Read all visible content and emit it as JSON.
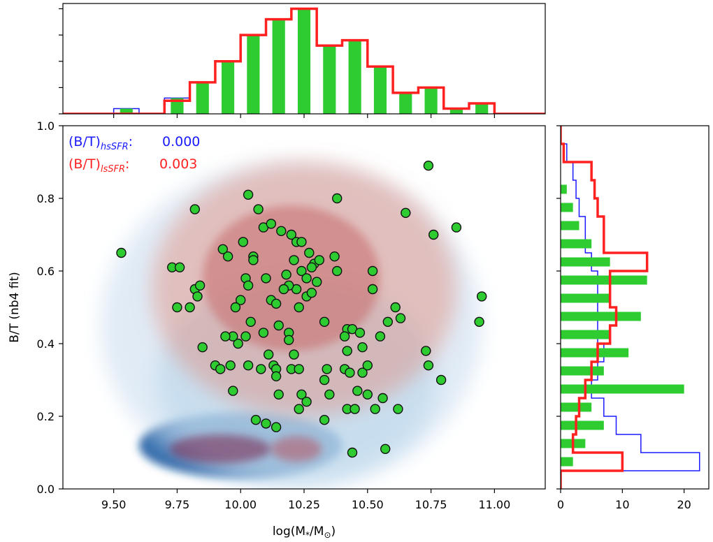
{
  "chart_data": [
    {
      "id": "main",
      "type": "scatter",
      "title": "",
      "xlabel": "log(M",
      "xlabel_sub": "*",
      "xlabel_mid": "/M",
      "xlabel_sun": "⊙",
      "xlabel_end": ")",
      "ylabel": "B/T (nb4 fit)",
      "xlim": [
        9.3,
        11.2
      ],
      "ylim": [
        0.0,
        1.0
      ],
      "xticks": [
        9.5,
        9.75,
        10.0,
        10.25,
        10.5,
        10.75,
        11.0
      ],
      "xtick_labels": [
        "9.50",
        "9.75",
        "10.00",
        "10.25",
        "10.50",
        "10.75",
        "11.00"
      ],
      "yticks": [
        0.0,
        0.2,
        0.4,
        0.6,
        0.8,
        1.0
      ],
      "ytick_labels": [
        "0.0",
        "0.2",
        "0.4",
        "0.6",
        "0.8",
        "1.0"
      ],
      "annotations": [
        {
          "prefix": "(B/T)",
          "sub": "hsSFR",
          "suffix": ":",
          "value": "0.000",
          "color": "#1a1aff"
        },
        {
          "prefix": "(B/T)",
          "sub": "lsSFR",
          "suffix": ":",
          "value": "0.003",
          "color": "#ff2020"
        }
      ],
      "density_blue": [
        {
          "cx": 10.0,
          "cy": 0.12,
          "rx": 0.4,
          "ry": 0.09,
          "level": 4
        },
        {
          "cx": 10.22,
          "cy": 0.3,
          "rx": 0.55,
          "ry": 0.28,
          "level": 2
        },
        {
          "cx": 10.2,
          "cy": 0.45,
          "rx": 0.75,
          "ry": 0.45,
          "level": 1
        }
      ],
      "density_red": [
        {
          "cx": 9.92,
          "cy": 0.11,
          "rx": 0.2,
          "ry": 0.04,
          "level": 4
        },
        {
          "cx": 10.22,
          "cy": 0.11,
          "rx": 0.1,
          "ry": 0.035,
          "level": 3
        },
        {
          "cx": 10.2,
          "cy": 0.58,
          "rx": 0.35,
          "ry": 0.2,
          "level": 3
        },
        {
          "cx": 10.25,
          "cy": 0.55,
          "rx": 0.6,
          "ry": 0.35,
          "level": 2
        }
      ],
      "points": [
        {
          "x": 9.53,
          "y": 0.65
        },
        {
          "x": 9.73,
          "y": 0.61
        },
        {
          "x": 9.76,
          "y": 0.61
        },
        {
          "x": 9.82,
          "y": 0.77
        },
        {
          "x": 9.82,
          "y": 0.55
        },
        {
          "x": 9.84,
          "y": 0.56
        },
        {
          "x": 9.83,
          "y": 0.53
        },
        {
          "x": 9.75,
          "y": 0.5
        },
        {
          "x": 9.8,
          "y": 0.5
        },
        {
          "x": 9.85,
          "y": 0.39
        },
        {
          "x": 9.93,
          "y": 0.66
        },
        {
          "x": 9.95,
          "y": 0.64
        },
        {
          "x": 10.03,
          "y": 0.81
        },
        {
          "x": 10.07,
          "y": 0.77
        },
        {
          "x": 10.09,
          "y": 0.72
        },
        {
          "x": 10.12,
          "y": 0.73
        },
        {
          "x": 10.2,
          "y": 0.7
        },
        {
          "x": 10.22,
          "y": 0.68
        },
        {
          "x": 10.24,
          "y": 0.68
        },
        {
          "x": 10.16,
          "y": 0.71
        },
        {
          "x": 10.01,
          "y": 0.68
        },
        {
          "x": 10.05,
          "y": 0.64
        },
        {
          "x": 10.05,
          "y": 0.63
        },
        {
          "x": 10.02,
          "y": 0.58
        },
        {
          "x": 10.03,
          "y": 0.56
        },
        {
          "x": 10.1,
          "y": 0.58
        },
        {
          "x": 10.18,
          "y": 0.59
        },
        {
          "x": 10.21,
          "y": 0.63
        },
        {
          "x": 10.24,
          "y": 0.6
        },
        {
          "x": 10.27,
          "y": 0.65
        },
        {
          "x": 10.29,
          "y": 0.62
        },
        {
          "x": 10.31,
          "y": 0.63
        },
        {
          "x": 10.28,
          "y": 0.61
        },
        {
          "x": 10.37,
          "y": 0.64
        },
        {
          "x": 10.38,
          "y": 0.6
        },
        {
          "x": 10.3,
          "y": 0.57
        },
        {
          "x": 10.26,
          "y": 0.58
        },
        {
          "x": 10.22,
          "y": 0.55
        },
        {
          "x": 10.19,
          "y": 0.56
        },
        {
          "x": 10.17,
          "y": 0.55
        },
        {
          "x": 10.23,
          "y": 0.5
        },
        {
          "x": 10.26,
          "y": 0.53
        },
        {
          "x": 10.28,
          "y": 0.54
        },
        {
          "x": 10.0,
          "y": 0.52
        },
        {
          "x": 10.12,
          "y": 0.52
        },
        {
          "x": 10.14,
          "y": 0.51
        },
        {
          "x": 9.98,
          "y": 0.5
        },
        {
          "x": 10.04,
          "y": 0.46
        },
        {
          "x": 10.15,
          "y": 0.45
        },
        {
          "x": 10.09,
          "y": 0.43
        },
        {
          "x": 10.19,
          "y": 0.43
        },
        {
          "x": 10.02,
          "y": 0.42
        },
        {
          "x": 9.99,
          "y": 0.4
        },
        {
          "x": 9.97,
          "y": 0.42
        },
        {
          "x": 9.94,
          "y": 0.42
        },
        {
          "x": 10.11,
          "y": 0.37
        },
        {
          "x": 10.19,
          "y": 0.41
        },
        {
          "x": 10.21,
          "y": 0.37
        },
        {
          "x": 10.33,
          "y": 0.46
        },
        {
          "x": 10.42,
          "y": 0.44
        },
        {
          "x": 10.44,
          "y": 0.44
        },
        {
          "x": 10.47,
          "y": 0.43
        },
        {
          "x": 10.41,
          "y": 0.42
        },
        {
          "x": 10.52,
          "y": 0.6
        },
        {
          "x": 10.52,
          "y": 0.55
        },
        {
          "x": 10.61,
          "y": 0.5
        },
        {
          "x": 10.63,
          "y": 0.47
        },
        {
          "x": 10.58,
          "y": 0.46
        },
        {
          "x": 10.55,
          "y": 0.42
        },
        {
          "x": 10.48,
          "y": 0.39
        },
        {
          "x": 10.42,
          "y": 0.38
        },
        {
          "x": 10.65,
          "y": 0.76
        },
        {
          "x": 10.76,
          "y": 0.7
        },
        {
          "x": 10.85,
          "y": 0.72
        },
        {
          "x": 10.74,
          "y": 0.89
        },
        {
          "x": 10.38,
          "y": 0.8
        },
        {
          "x": 10.95,
          "y": 0.53
        },
        {
          "x": 10.94,
          "y": 0.46
        },
        {
          "x": 10.73,
          "y": 0.38
        },
        {
          "x": 10.74,
          "y": 0.34
        },
        {
          "x": 10.79,
          "y": 0.3
        },
        {
          "x": 9.9,
          "y": 0.34
        },
        {
          "x": 9.92,
          "y": 0.33
        },
        {
          "x": 9.96,
          "y": 0.34
        },
        {
          "x": 10.03,
          "y": 0.34
        },
        {
          "x": 10.08,
          "y": 0.33
        },
        {
          "x": 10.13,
          "y": 0.34
        },
        {
          "x": 10.14,
          "y": 0.33
        },
        {
          "x": 10.14,
          "y": 0.31
        },
        {
          "x": 10.2,
          "y": 0.33
        },
        {
          "x": 10.23,
          "y": 0.33
        },
        {
          "x": 10.34,
          "y": 0.33
        },
        {
          "x": 10.33,
          "y": 0.3
        },
        {
          "x": 10.41,
          "y": 0.33
        },
        {
          "x": 10.43,
          "y": 0.32
        },
        {
          "x": 10.48,
          "y": 0.32
        },
        {
          "x": 10.46,
          "y": 0.27
        },
        {
          "x": 10.5,
          "y": 0.34
        },
        {
          "x": 9.97,
          "y": 0.27
        },
        {
          "x": 10.15,
          "y": 0.26
        },
        {
          "x": 10.24,
          "y": 0.26
        },
        {
          "x": 10.26,
          "y": 0.24
        },
        {
          "x": 10.23,
          "y": 0.22
        },
        {
          "x": 10.35,
          "y": 0.26
        },
        {
          "x": 10.42,
          "y": 0.22
        },
        {
          "x": 10.45,
          "y": 0.22
        },
        {
          "x": 10.5,
          "y": 0.26
        },
        {
          "x": 10.53,
          "y": 0.22
        },
        {
          "x": 10.56,
          "y": 0.25
        },
        {
          "x": 10.62,
          "y": 0.22
        },
        {
          "x": 10.33,
          "y": 0.19
        },
        {
          "x": 10.06,
          "y": 0.19
        },
        {
          "x": 10.1,
          "y": 0.18
        },
        {
          "x": 10.14,
          "y": 0.17
        },
        {
          "x": 10.44,
          "y": 0.1
        },
        {
          "x": 10.57,
          "y": 0.11
        }
      ]
    },
    {
      "id": "top-histogram",
      "type": "bar",
      "xlim": [
        9.3,
        11.2
      ],
      "ylim": [
        0,
        21
      ],
      "bin_edges": [
        9.3,
        9.4,
        9.5,
        9.6,
        9.7,
        9.8,
        9.9,
        10.0,
        10.1,
        10.2,
        10.3,
        10.4,
        10.5,
        10.6,
        10.7,
        10.8,
        10.9,
        11.0,
        11.1,
        11.2
      ],
      "series": [
        {
          "name": "hsSFR",
          "color": "#1a1aff",
          "values": [
            0,
            0,
            1,
            0,
            3,
            6,
            10,
            15,
            18,
            20,
            13,
            14,
            9,
            4,
            5,
            1,
            2,
            0,
            0
          ]
        },
        {
          "name": "lsSFR",
          "color": "#ff2020",
          "values": [
            0,
            0,
            0,
            0,
            2.5,
            6,
            10,
            15,
            18,
            20,
            13,
            14,
            9,
            4,
            5,
            1,
            2,
            0,
            0
          ]
        },
        {
          "name": "sample",
          "color": "#2ecc31",
          "values": [
            0,
            0,
            1,
            0,
            3,
            6,
            10,
            15,
            18,
            20,
            13,
            14,
            9,
            4,
            5,
            1,
            2,
            0,
            0
          ]
        }
      ]
    },
    {
      "id": "right-histogram",
      "type": "bar",
      "orientation": "horizontal",
      "xlim": [
        0,
        24
      ],
      "ylim": [
        0.0,
        1.0
      ],
      "xticks": [
        0,
        10,
        20
      ],
      "xtick_labels": [
        "0",
        "10",
        "20"
      ],
      "bin_edges": [
        0.0,
        0.05,
        0.1,
        0.15,
        0.2,
        0.25,
        0.3,
        0.35,
        0.4,
        0.45,
        0.5,
        0.55,
        0.6,
        0.65,
        0.7,
        0.75,
        0.8,
        0.85,
        0.9,
        0.95,
        1.0
      ],
      "series": [
        {
          "name": "hsSFR",
          "color": "#1a1aff",
          "values": [
            0,
            22.5,
            13,
            9,
            7,
            5,
            6,
            7,
            6,
            6,
            6,
            6,
            5,
            4,
            4,
            3,
            2.5,
            2,
            1,
            0
          ]
        },
        {
          "name": "lsSFR",
          "color": "#ff2020",
          "values": [
            0,
            10,
            2,
            2.5,
            3,
            4,
            5,
            6,
            8,
            9,
            8,
            8,
            14,
            7,
            7,
            6,
            5.5,
            5,
            0.5,
            0
          ]
        },
        {
          "name": "sample",
          "color": "#2ecc31",
          "values": [
            0,
            2,
            4,
            7,
            5,
            20,
            7,
            11,
            8,
            13,
            8,
            14,
            8,
            5,
            3,
            2,
            1,
            0,
            0,
            0
          ]
        }
      ]
    }
  ]
}
